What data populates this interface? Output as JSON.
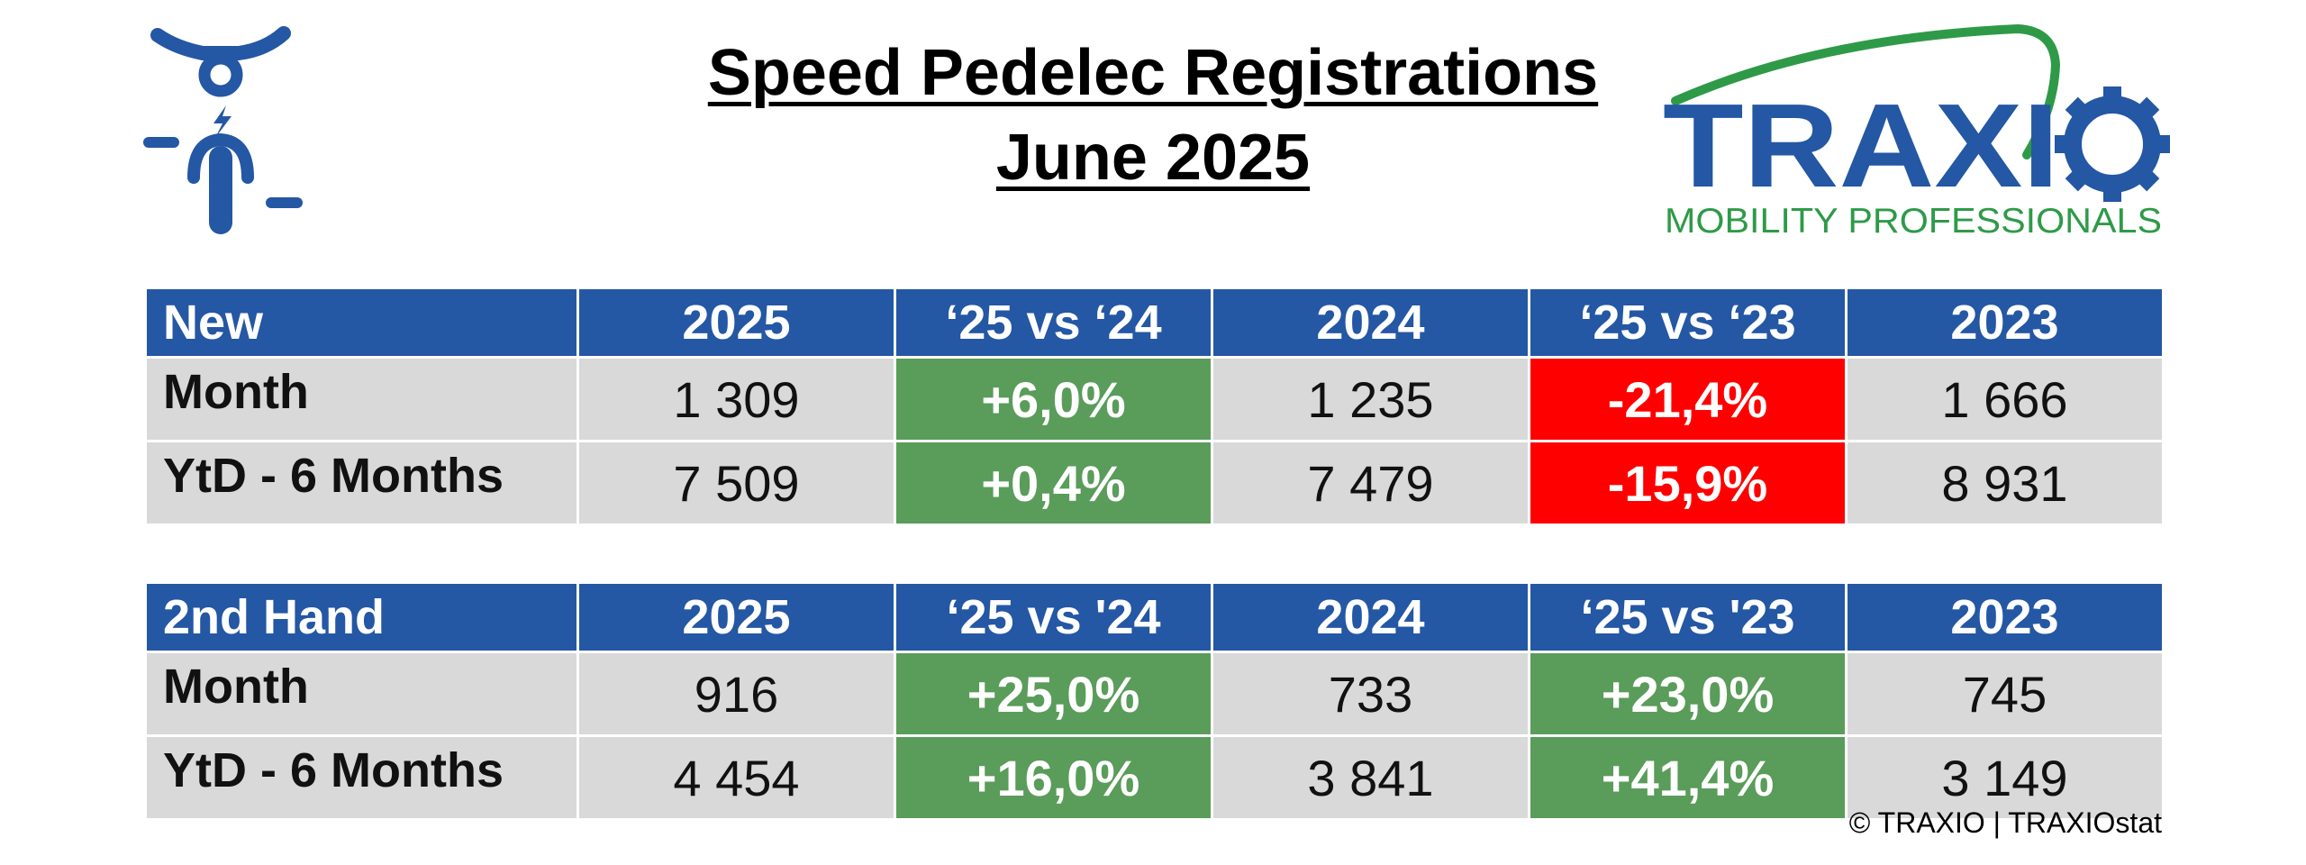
{
  "title": {
    "line1": "Speed Pedelec Registrations",
    "line2": "June 2025"
  },
  "icons": {
    "rider": "speed-pedelec-rider-icon"
  },
  "logo": {
    "name": "TRAXIO",
    "tagline": "MOBILITY PROFESSIONALS",
    "colors": {
      "blue": "#2457a4",
      "green": "#2e9a48"
    }
  },
  "colors": {
    "header": "#2457a4",
    "positive": "#5a9c5a",
    "negative": "#ff0000",
    "cell": "#d9d9d9"
  },
  "new_table": {
    "headers": [
      "New",
      "2025",
      "‘25 vs ‘24",
      "2024",
      "‘25 vs ‘23",
      "2023"
    ],
    "rows": [
      {
        "label": "Month",
        "v2025": "1 309",
        "vs24": "+6,0%",
        "v2024": "1 235",
        "vs23": "-21,4%",
        "v2023": "1 666"
      },
      {
        "label": "YtD - 6 Months",
        "v2025": "7 509",
        "vs24": "+0,4%",
        "v2024": "7 479",
        "vs23": "-15,9%",
        "v2023": "8 931"
      }
    ]
  },
  "used_table": {
    "headers": [
      "2nd Hand",
      "2025",
      "‘25 vs '24",
      "2024",
      "‘25 vs '23",
      "2023"
    ],
    "rows": [
      {
        "label": "Month",
        "v2025": "916",
        "vs24": "+25,0%",
        "v2024": "733",
        "vs23": "+23,0%",
        "v2023": "745"
      },
      {
        "label": "YtD - 6 Months",
        "v2025": "4 454",
        "vs24": "+16,0%",
        "v2024": "3 841",
        "vs23": "+41,4%",
        "v2023": "3 149"
      }
    ]
  },
  "footer": {
    "copyright": "© TRAXIO | TRAXIOstat"
  }
}
